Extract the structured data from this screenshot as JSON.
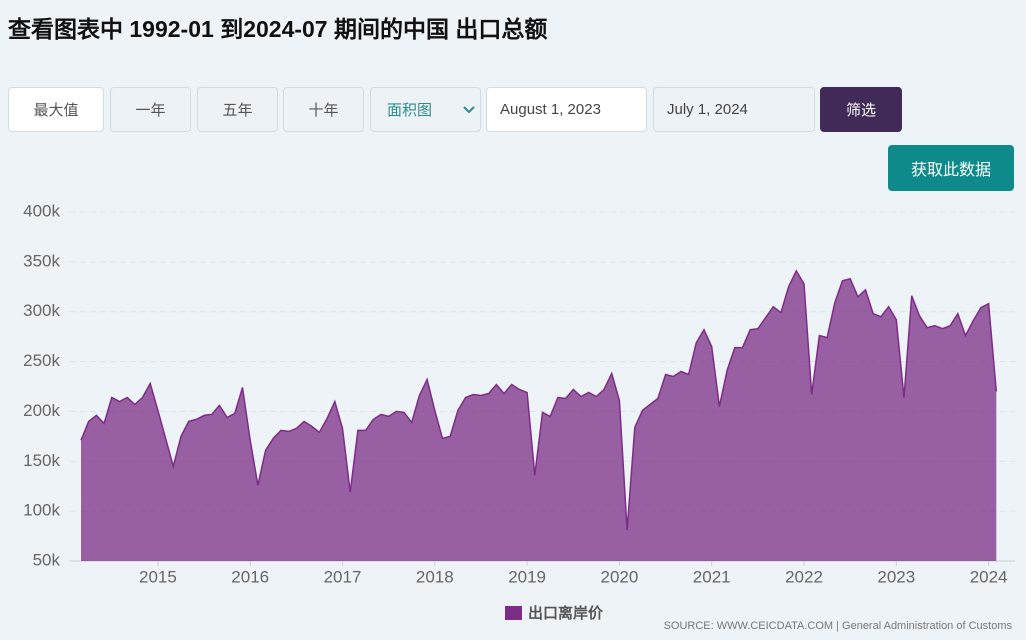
{
  "header": {
    "title": "查看图表中 1992-01 到2024-07 期间的中国 出口总额"
  },
  "controls": {
    "range_buttons": [
      "最大值",
      "一年",
      "五年",
      "十年"
    ],
    "chart_type": "面积图",
    "start_date": "August 1, 2023",
    "end_date": "July 1, 2024",
    "filter": "筛选",
    "download": "获取此数据"
  },
  "chart_data": {
    "type": "area",
    "series": [
      {
        "name": "出口离岸价",
        "color": "#7b2d87",
        "values": [
          171000,
          190000,
          196000,
          188000,
          214000,
          210000,
          214000,
          207000,
          214000,
          228000,
          201000,
          173000,
          145000,
          175000,
          190000,
          192000,
          196000,
          197000,
          206000,
          194000,
          198000,
          224000,
          171000,
          126000,
          161000,
          173000,
          181000,
          180000,
          183000,
          190000,
          185000,
          179000,
          193000,
          210000,
          183000,
          119000,
          181000,
          181000,
          192000,
          197000,
          195000,
          200000,
          199000,
          189000,
          216000,
          232000,
          201000,
          173000,
          175000,
          201000,
          214000,
          217000,
          216000,
          218000,
          227000,
          218000,
          227000,
          222000,
          219000,
          136000,
          199000,
          195000,
          214000,
          213000,
          222000,
          215000,
          219000,
          215000,
          222000,
          238000,
          211000,
          81000,
          184000,
          201000,
          207000,
          213000,
          237000,
          235000,
          240000,
          237000,
          269000,
          282000,
          265000,
          205000,
          241000,
          264000,
          264000,
          282000,
          283000,
          294000,
          305000,
          299000,
          325000,
          341000,
          328000,
          217000,
          276000,
          274000,
          309000,
          331000,
          333000,
          315000,
          322000,
          298000,
          295000,
          305000,
          292000,
          214000,
          316000,
          296000,
          284000,
          286000,
          283000,
          286000,
          298000,
          276000,
          291000,
          304000,
          308000,
          220000
        ]
      }
    ],
    "xlim": [
      0,
      120
    ],
    "xticks": [
      {
        "value": 10,
        "label": "2015"
      },
      {
        "value": 22,
        "label": "2016"
      },
      {
        "value": 34,
        "label": "2017"
      },
      {
        "value": 46,
        "label": "2018"
      },
      {
        "value": 58,
        "label": "2019"
      },
      {
        "value": 70,
        "label": "2020"
      },
      {
        "value": 82,
        "label": "2021"
      },
      {
        "value": 94,
        "label": "2022"
      },
      {
        "value": 106,
        "label": "2023"
      },
      {
        "value": 118,
        "label": "2024"
      }
    ],
    "ylim": [
      50000,
      400000
    ],
    "yticks": [
      {
        "value": 50000,
        "label": "50k"
      },
      {
        "value": 100000,
        "label": "100k"
      },
      {
        "value": 150000,
        "label": "150k"
      },
      {
        "value": 200000,
        "label": "200k"
      },
      {
        "value": 250000,
        "label": "250k"
      },
      {
        "value": 300000,
        "label": "300k"
      },
      {
        "value": 350000,
        "label": "350k"
      },
      {
        "value": 400000,
        "label": "400k"
      }
    ],
    "grid": true,
    "source": "SOURCE: WWW.CEICDATA.COM | General Administration of Customs"
  }
}
